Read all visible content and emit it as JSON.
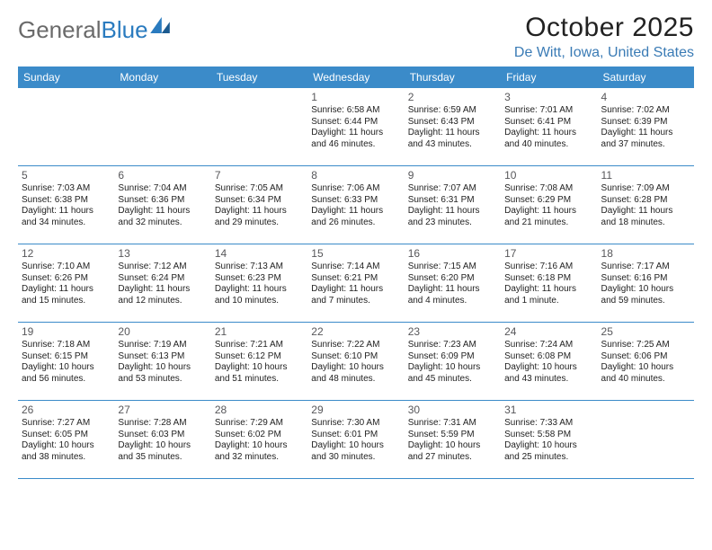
{
  "logo": {
    "text_a": "General",
    "text_b": "Blue"
  },
  "title": "October 2025",
  "location": "De Witt, Iowa, United States",
  "colors": {
    "header_bg": "#3b8bc9",
    "header_text": "#ffffff",
    "rule": "#3b8bc9",
    "location_text": "#3a7bb5",
    "logo_gray": "#6a6a6a",
    "logo_blue": "#2a7bbf",
    "daynum": "#57575a",
    "body_text": "#222222",
    "background": "#ffffff"
  },
  "dow": [
    "Sunday",
    "Monday",
    "Tuesday",
    "Wednesday",
    "Thursday",
    "Friday",
    "Saturday"
  ],
  "weeks": [
    [
      {
        "n": "",
        "sunrise": "",
        "sunset": "",
        "dl1": "",
        "dl2": ""
      },
      {
        "n": "",
        "sunrise": "",
        "sunset": "",
        "dl1": "",
        "dl2": ""
      },
      {
        "n": "",
        "sunrise": "",
        "sunset": "",
        "dl1": "",
        "dl2": ""
      },
      {
        "n": "1",
        "sunrise": "Sunrise: 6:58 AM",
        "sunset": "Sunset: 6:44 PM",
        "dl1": "Daylight: 11 hours",
        "dl2": "and 46 minutes."
      },
      {
        "n": "2",
        "sunrise": "Sunrise: 6:59 AM",
        "sunset": "Sunset: 6:43 PM",
        "dl1": "Daylight: 11 hours",
        "dl2": "and 43 minutes."
      },
      {
        "n": "3",
        "sunrise": "Sunrise: 7:01 AM",
        "sunset": "Sunset: 6:41 PM",
        "dl1": "Daylight: 11 hours",
        "dl2": "and 40 minutes."
      },
      {
        "n": "4",
        "sunrise": "Sunrise: 7:02 AM",
        "sunset": "Sunset: 6:39 PM",
        "dl1": "Daylight: 11 hours",
        "dl2": "and 37 minutes."
      }
    ],
    [
      {
        "n": "5",
        "sunrise": "Sunrise: 7:03 AM",
        "sunset": "Sunset: 6:38 PM",
        "dl1": "Daylight: 11 hours",
        "dl2": "and 34 minutes."
      },
      {
        "n": "6",
        "sunrise": "Sunrise: 7:04 AM",
        "sunset": "Sunset: 6:36 PM",
        "dl1": "Daylight: 11 hours",
        "dl2": "and 32 minutes."
      },
      {
        "n": "7",
        "sunrise": "Sunrise: 7:05 AM",
        "sunset": "Sunset: 6:34 PM",
        "dl1": "Daylight: 11 hours",
        "dl2": "and 29 minutes."
      },
      {
        "n": "8",
        "sunrise": "Sunrise: 7:06 AM",
        "sunset": "Sunset: 6:33 PM",
        "dl1": "Daylight: 11 hours",
        "dl2": "and 26 minutes."
      },
      {
        "n": "9",
        "sunrise": "Sunrise: 7:07 AM",
        "sunset": "Sunset: 6:31 PM",
        "dl1": "Daylight: 11 hours",
        "dl2": "and 23 minutes."
      },
      {
        "n": "10",
        "sunrise": "Sunrise: 7:08 AM",
        "sunset": "Sunset: 6:29 PM",
        "dl1": "Daylight: 11 hours",
        "dl2": "and 21 minutes."
      },
      {
        "n": "11",
        "sunrise": "Sunrise: 7:09 AM",
        "sunset": "Sunset: 6:28 PM",
        "dl1": "Daylight: 11 hours",
        "dl2": "and 18 minutes."
      }
    ],
    [
      {
        "n": "12",
        "sunrise": "Sunrise: 7:10 AM",
        "sunset": "Sunset: 6:26 PM",
        "dl1": "Daylight: 11 hours",
        "dl2": "and 15 minutes."
      },
      {
        "n": "13",
        "sunrise": "Sunrise: 7:12 AM",
        "sunset": "Sunset: 6:24 PM",
        "dl1": "Daylight: 11 hours",
        "dl2": "and 12 minutes."
      },
      {
        "n": "14",
        "sunrise": "Sunrise: 7:13 AM",
        "sunset": "Sunset: 6:23 PM",
        "dl1": "Daylight: 11 hours",
        "dl2": "and 10 minutes."
      },
      {
        "n": "15",
        "sunrise": "Sunrise: 7:14 AM",
        "sunset": "Sunset: 6:21 PM",
        "dl1": "Daylight: 11 hours",
        "dl2": "and 7 minutes."
      },
      {
        "n": "16",
        "sunrise": "Sunrise: 7:15 AM",
        "sunset": "Sunset: 6:20 PM",
        "dl1": "Daylight: 11 hours",
        "dl2": "and 4 minutes."
      },
      {
        "n": "17",
        "sunrise": "Sunrise: 7:16 AM",
        "sunset": "Sunset: 6:18 PM",
        "dl1": "Daylight: 11 hours",
        "dl2": "and 1 minute."
      },
      {
        "n": "18",
        "sunrise": "Sunrise: 7:17 AM",
        "sunset": "Sunset: 6:16 PM",
        "dl1": "Daylight: 10 hours",
        "dl2": "and 59 minutes."
      }
    ],
    [
      {
        "n": "19",
        "sunrise": "Sunrise: 7:18 AM",
        "sunset": "Sunset: 6:15 PM",
        "dl1": "Daylight: 10 hours",
        "dl2": "and 56 minutes."
      },
      {
        "n": "20",
        "sunrise": "Sunrise: 7:19 AM",
        "sunset": "Sunset: 6:13 PM",
        "dl1": "Daylight: 10 hours",
        "dl2": "and 53 minutes."
      },
      {
        "n": "21",
        "sunrise": "Sunrise: 7:21 AM",
        "sunset": "Sunset: 6:12 PM",
        "dl1": "Daylight: 10 hours",
        "dl2": "and 51 minutes."
      },
      {
        "n": "22",
        "sunrise": "Sunrise: 7:22 AM",
        "sunset": "Sunset: 6:10 PM",
        "dl1": "Daylight: 10 hours",
        "dl2": "and 48 minutes."
      },
      {
        "n": "23",
        "sunrise": "Sunrise: 7:23 AM",
        "sunset": "Sunset: 6:09 PM",
        "dl1": "Daylight: 10 hours",
        "dl2": "and 45 minutes."
      },
      {
        "n": "24",
        "sunrise": "Sunrise: 7:24 AM",
        "sunset": "Sunset: 6:08 PM",
        "dl1": "Daylight: 10 hours",
        "dl2": "and 43 minutes."
      },
      {
        "n": "25",
        "sunrise": "Sunrise: 7:25 AM",
        "sunset": "Sunset: 6:06 PM",
        "dl1": "Daylight: 10 hours",
        "dl2": "and 40 minutes."
      }
    ],
    [
      {
        "n": "26",
        "sunrise": "Sunrise: 7:27 AM",
        "sunset": "Sunset: 6:05 PM",
        "dl1": "Daylight: 10 hours",
        "dl2": "and 38 minutes."
      },
      {
        "n": "27",
        "sunrise": "Sunrise: 7:28 AM",
        "sunset": "Sunset: 6:03 PM",
        "dl1": "Daylight: 10 hours",
        "dl2": "and 35 minutes."
      },
      {
        "n": "28",
        "sunrise": "Sunrise: 7:29 AM",
        "sunset": "Sunset: 6:02 PM",
        "dl1": "Daylight: 10 hours",
        "dl2": "and 32 minutes."
      },
      {
        "n": "29",
        "sunrise": "Sunrise: 7:30 AM",
        "sunset": "Sunset: 6:01 PM",
        "dl1": "Daylight: 10 hours",
        "dl2": "and 30 minutes."
      },
      {
        "n": "30",
        "sunrise": "Sunrise: 7:31 AM",
        "sunset": "Sunset: 5:59 PM",
        "dl1": "Daylight: 10 hours",
        "dl2": "and 27 minutes."
      },
      {
        "n": "31",
        "sunrise": "Sunrise: 7:33 AM",
        "sunset": "Sunset: 5:58 PM",
        "dl1": "Daylight: 10 hours",
        "dl2": "and 25 minutes."
      },
      {
        "n": "",
        "sunrise": "",
        "sunset": "",
        "dl1": "",
        "dl2": ""
      }
    ]
  ]
}
